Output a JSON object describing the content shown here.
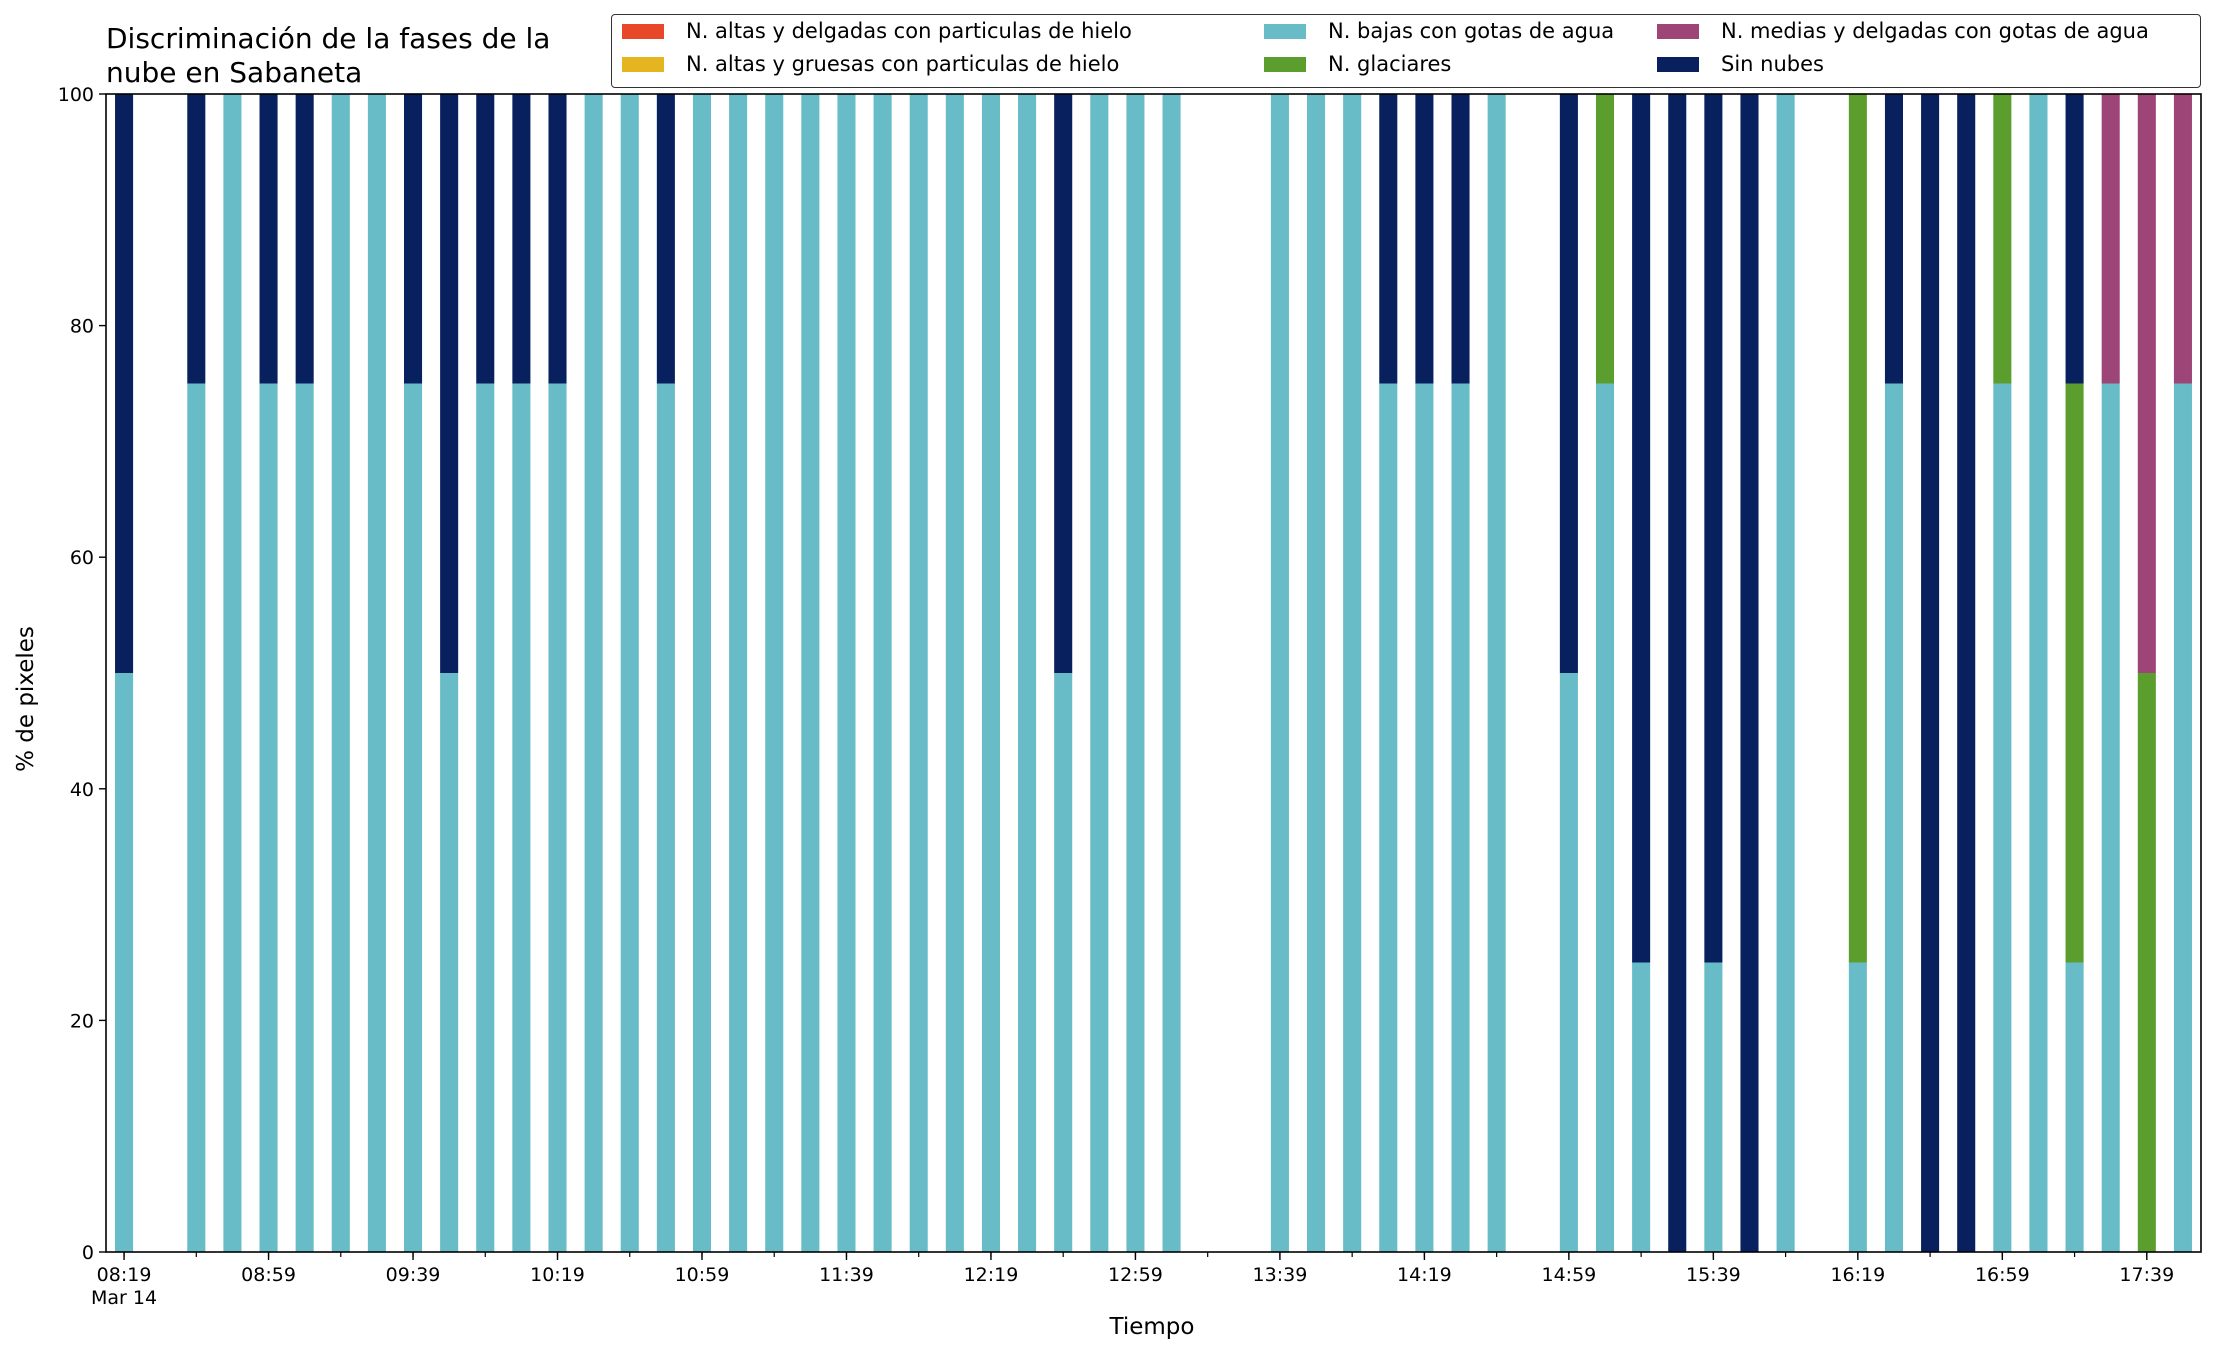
{
  "chart_data": {
    "type": "bar",
    "stacked": true,
    "title": "Discriminación de la fases de la\nnube en Sabaneta",
    "xlabel": "Tiempo",
    "ylabel": "% de pixeles",
    "ylim": [
      0,
      100
    ],
    "yticks": [
      0,
      20,
      40,
      60,
      80,
      100
    ],
    "grid": false,
    "legend_placement": "top-right",
    "legend": [
      {
        "name": "N. altas y delgadas con particulas de hielo",
        "color": "#e8472a"
      },
      {
        "name": "N. altas y gruesas con particulas de hielo",
        "color": "#e4b51f"
      },
      {
        "name": "N. bajas con gotas de agua",
        "color": "#67bcc7"
      },
      {
        "name": "N. glaciares",
        "color": "#5c9e2e"
      },
      {
        "name": "N. medias y delgadas con gotas de agua",
        "color": "#9e4577"
      },
      {
        "name": "Sin nubes",
        "color": "#08205e"
      }
    ],
    "x_major_tick_labels": [
      {
        "slot": 0,
        "label": "08:19",
        "sub": "Mar 14"
      },
      {
        "slot": 4,
        "label": "08:59"
      },
      {
        "slot": 8,
        "label": "09:39"
      },
      {
        "slot": 12,
        "label": "10:19"
      },
      {
        "slot": 16,
        "label": "10:59"
      },
      {
        "slot": 20,
        "label": "11:39"
      },
      {
        "slot": 24,
        "label": "12:19"
      },
      {
        "slot": 28,
        "label": "12:59"
      },
      {
        "slot": 32,
        "label": "13:39"
      },
      {
        "slot": 36,
        "label": "14:19"
      },
      {
        "slot": 40,
        "label": "14:59"
      },
      {
        "slot": 44,
        "label": "15:39"
      },
      {
        "slot": 48,
        "label": "16:19"
      },
      {
        "slot": 52,
        "label": "16:59"
      },
      {
        "slot": 56,
        "label": "17:39"
      }
    ],
    "total_slots": 58,
    "bars": [
      {
        "slot": 0,
        "bajas": 50,
        "glaciares": 0,
        "medias": 0,
        "sin_nubes": 50
      },
      {
        "slot": 2,
        "bajas": 75,
        "glaciares": 0,
        "medias": 0,
        "sin_nubes": 25
      },
      {
        "slot": 3,
        "bajas": 100,
        "glaciares": 0,
        "medias": 0,
        "sin_nubes": 0
      },
      {
        "slot": 4,
        "bajas": 75,
        "glaciares": 0,
        "medias": 0,
        "sin_nubes": 25
      },
      {
        "slot": 5,
        "bajas": 75,
        "glaciares": 0,
        "medias": 0,
        "sin_nubes": 25
      },
      {
        "slot": 6,
        "bajas": 100,
        "glaciares": 0,
        "medias": 0,
        "sin_nubes": 0
      },
      {
        "slot": 7,
        "bajas": 100,
        "glaciares": 0,
        "medias": 0,
        "sin_nubes": 0
      },
      {
        "slot": 8,
        "bajas": 75,
        "glaciares": 0,
        "medias": 0,
        "sin_nubes": 25
      },
      {
        "slot": 9,
        "bajas": 50,
        "glaciares": 0,
        "medias": 0,
        "sin_nubes": 50
      },
      {
        "slot": 10,
        "bajas": 75,
        "glaciares": 0,
        "medias": 0,
        "sin_nubes": 25
      },
      {
        "slot": 11,
        "bajas": 75,
        "glaciares": 0,
        "medias": 0,
        "sin_nubes": 25
      },
      {
        "slot": 12,
        "bajas": 75,
        "glaciares": 0,
        "medias": 0,
        "sin_nubes": 25
      },
      {
        "slot": 13,
        "bajas": 100,
        "glaciares": 0,
        "medias": 0,
        "sin_nubes": 0
      },
      {
        "slot": 14,
        "bajas": 100,
        "glaciares": 0,
        "medias": 0,
        "sin_nubes": 0
      },
      {
        "slot": 15,
        "bajas": 75,
        "glaciares": 0,
        "medias": 0,
        "sin_nubes": 25
      },
      {
        "slot": 16,
        "bajas": 100,
        "glaciares": 0,
        "medias": 0,
        "sin_nubes": 0
      },
      {
        "slot": 17,
        "bajas": 100,
        "glaciares": 0,
        "medias": 0,
        "sin_nubes": 0
      },
      {
        "slot": 18,
        "bajas": 100,
        "glaciares": 0,
        "medias": 0,
        "sin_nubes": 0
      },
      {
        "slot": 19,
        "bajas": 100,
        "glaciares": 0,
        "medias": 0,
        "sin_nubes": 0
      },
      {
        "slot": 20,
        "bajas": 100,
        "glaciares": 0,
        "medias": 0,
        "sin_nubes": 0
      },
      {
        "slot": 21,
        "bajas": 100,
        "glaciares": 0,
        "medias": 0,
        "sin_nubes": 0
      },
      {
        "slot": 22,
        "bajas": 100,
        "glaciares": 0,
        "medias": 0,
        "sin_nubes": 0
      },
      {
        "slot": 23,
        "bajas": 100,
        "glaciares": 0,
        "medias": 0,
        "sin_nubes": 0
      },
      {
        "slot": 24,
        "bajas": 100,
        "glaciares": 0,
        "medias": 0,
        "sin_nubes": 0
      },
      {
        "slot": 25,
        "bajas": 100,
        "glaciares": 0,
        "medias": 0,
        "sin_nubes": 0
      },
      {
        "slot": 26,
        "bajas": 50,
        "glaciares": 0,
        "medias": 0,
        "sin_nubes": 50
      },
      {
        "slot": 27,
        "bajas": 100,
        "glaciares": 0,
        "medias": 0,
        "sin_nubes": 0
      },
      {
        "slot": 28,
        "bajas": 100,
        "glaciares": 0,
        "medias": 0,
        "sin_nubes": 0
      },
      {
        "slot": 29,
        "bajas": 100,
        "glaciares": 0,
        "medias": 0,
        "sin_nubes": 0
      },
      {
        "slot": 32,
        "bajas": 100,
        "glaciares": 0,
        "medias": 0,
        "sin_nubes": 0
      },
      {
        "slot": 33,
        "bajas": 100,
        "glaciares": 0,
        "medias": 0,
        "sin_nubes": 0
      },
      {
        "slot": 34,
        "bajas": 100,
        "glaciares": 0,
        "medias": 0,
        "sin_nubes": 0
      },
      {
        "slot": 35,
        "bajas": 75,
        "glaciares": 0,
        "medias": 0,
        "sin_nubes": 25
      },
      {
        "slot": 36,
        "bajas": 75,
        "glaciares": 0,
        "medias": 0,
        "sin_nubes": 25
      },
      {
        "slot": 37,
        "bajas": 75,
        "glaciares": 0,
        "medias": 0,
        "sin_nubes": 25
      },
      {
        "slot": 38,
        "bajas": 100,
        "glaciares": 0,
        "medias": 0,
        "sin_nubes": 0
      },
      {
        "slot": 40,
        "bajas": 50,
        "glaciares": 0,
        "medias": 0,
        "sin_nubes": 50
      },
      {
        "slot": 41,
        "bajas": 75,
        "glaciares": 25,
        "medias": 0,
        "sin_nubes": 0
      },
      {
        "slot": 42,
        "bajas": 25,
        "glaciares": 0,
        "medias": 0,
        "sin_nubes": 75
      },
      {
        "slot": 43,
        "bajas": 0,
        "glaciares": 0,
        "medias": 0,
        "sin_nubes": 100
      },
      {
        "slot": 44,
        "bajas": 25,
        "glaciares": 0,
        "medias": 0,
        "sin_nubes": 75
      },
      {
        "slot": 45,
        "bajas": 0,
        "glaciares": 0,
        "medias": 0,
        "sin_nubes": 100
      },
      {
        "slot": 46,
        "bajas": 100,
        "glaciares": 0,
        "medias": 0,
        "sin_nubes": 0
      },
      {
        "slot": 48,
        "bajas": 25,
        "glaciares": 75,
        "medias": 0,
        "sin_nubes": 0
      },
      {
        "slot": 49,
        "bajas": 75,
        "glaciares": 0,
        "medias": 0,
        "sin_nubes": 25
      },
      {
        "slot": 50,
        "bajas": 0,
        "glaciares": 0,
        "medias": 0,
        "sin_nubes": 100
      },
      {
        "slot": 51,
        "bajas": 0,
        "glaciares": 0,
        "medias": 0,
        "sin_nubes": 100
      },
      {
        "slot": 52,
        "bajas": 75,
        "glaciares": 25,
        "medias": 0,
        "sin_nubes": 0
      },
      {
        "slot": 53,
        "bajas": 100,
        "glaciares": 0,
        "medias": 0,
        "sin_nubes": 0
      },
      {
        "slot": 54,
        "bajas": 25,
        "glaciares": 50,
        "medias": 0,
        "sin_nubes": 25
      },
      {
        "slot": 55,
        "bajas": 75,
        "glaciares": 0,
        "medias": 25,
        "sin_nubes": 0
      },
      {
        "slot": 56,
        "bajas": 0,
        "glaciares": 50,
        "medias": 50,
        "sin_nubes": 0
      },
      {
        "slot": 57,
        "bajas": 75,
        "glaciares": 0,
        "medias": 25,
        "sin_nubes": 0
      }
    ]
  }
}
